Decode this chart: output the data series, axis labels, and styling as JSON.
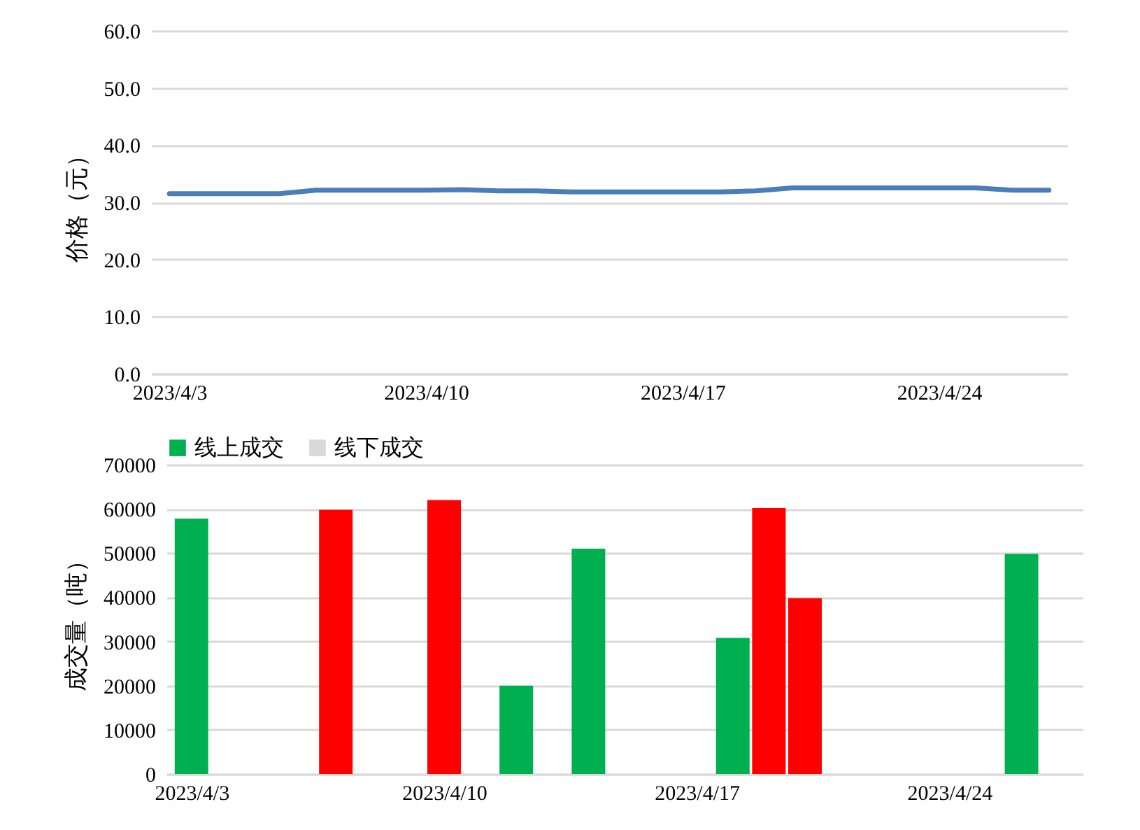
{
  "chart_data": [
    {
      "type": "line",
      "ylabel": "价格（元）",
      "grid": "y",
      "x": [
        "2023-04-03",
        "2023-04-04",
        "2023-04-05",
        "2023-04-06",
        "2023-04-07",
        "2023-04-10",
        "2023-04-11",
        "2023-04-12",
        "2023-04-13",
        "2023-04-14",
        "2023-04-17",
        "2023-04-18",
        "2023-04-19",
        "2023-04-20",
        "2023-04-21",
        "2023-04-24",
        "2023-04-25",
        "2023-04-26",
        "2023-04-27"
      ],
      "series": [
        {
          "color": "#4a7ebb",
          "values": [
            31.5,
            31.5,
            31.5,
            31.5,
            32.1,
            32.1,
            32.2,
            32.0,
            32.0,
            31.8,
            31.8,
            31.8,
            32.0,
            32.5,
            32.5,
            32.5,
            32.5,
            32.1,
            32.1
          ]
        }
      ],
      "xlim": [
        "2023-04-02T12:00",
        "2023-04-27T12:00"
      ],
      "xticks": [
        {
          "value": "2023-04-03",
          "label": "2023/4/3"
        },
        {
          "value": "2023-04-10",
          "label": "2023/4/10"
        },
        {
          "value": "2023-04-17",
          "label": "2023/4/17"
        },
        {
          "value": "2023-04-24",
          "label": "2023/4/24"
        }
      ],
      "ylim": [
        0,
        60
      ],
      "yticks": [
        {
          "value": 0,
          "label": "0.0"
        },
        {
          "value": 10,
          "label": "10.0"
        },
        {
          "value": 20,
          "label": "20.0"
        },
        {
          "value": 30,
          "label": "30.0"
        },
        {
          "value": 40,
          "label": "40.0"
        },
        {
          "value": 50,
          "label": "50.0"
        },
        {
          "value": 60,
          "label": "60.0"
        }
      ]
    },
    {
      "type": "bar",
      "ylabel": "成交量（吨）",
      "grid": "y",
      "legend": "top",
      "series": [
        {
          "name": "线上成交",
          "color": "#00b050",
          "x": [
            "2023-04-03",
            "2023-04-12",
            "2023-04-14",
            "2023-04-18",
            "2023-04-26"
          ],
          "values": [
            57800,
            20000,
            51000,
            30800,
            49800
          ]
        },
        {
          "name": "线下成交",
          "color": "#d9d9d9",
          "colors": [
            "#ff0000",
            "#ff0000",
            "#ff0000",
            "#ff0000"
          ],
          "x": [
            "2023-04-07",
            "2023-04-10",
            "2023-04-19",
            "2023-04-20"
          ],
          "values": [
            59800,
            62000,
            60200,
            39800
          ]
        }
      ],
      "xlim": [
        "2023-04-02T12:00",
        "2023-04-27T12:00"
      ],
      "xticks": [
        {
          "value": "2023-04-03",
          "label": "2023/4/3"
        },
        {
          "value": "2023-04-10",
          "label": "2023/4/10"
        },
        {
          "value": "2023-04-17",
          "label": "2023/4/17"
        },
        {
          "value": "2023-04-24",
          "label": "2023/4/24"
        }
      ],
      "ylim": [
        0,
        70000
      ],
      "yticks": [
        0,
        10000,
        20000,
        30000,
        40000,
        50000,
        60000,
        70000
      ]
    }
  ]
}
